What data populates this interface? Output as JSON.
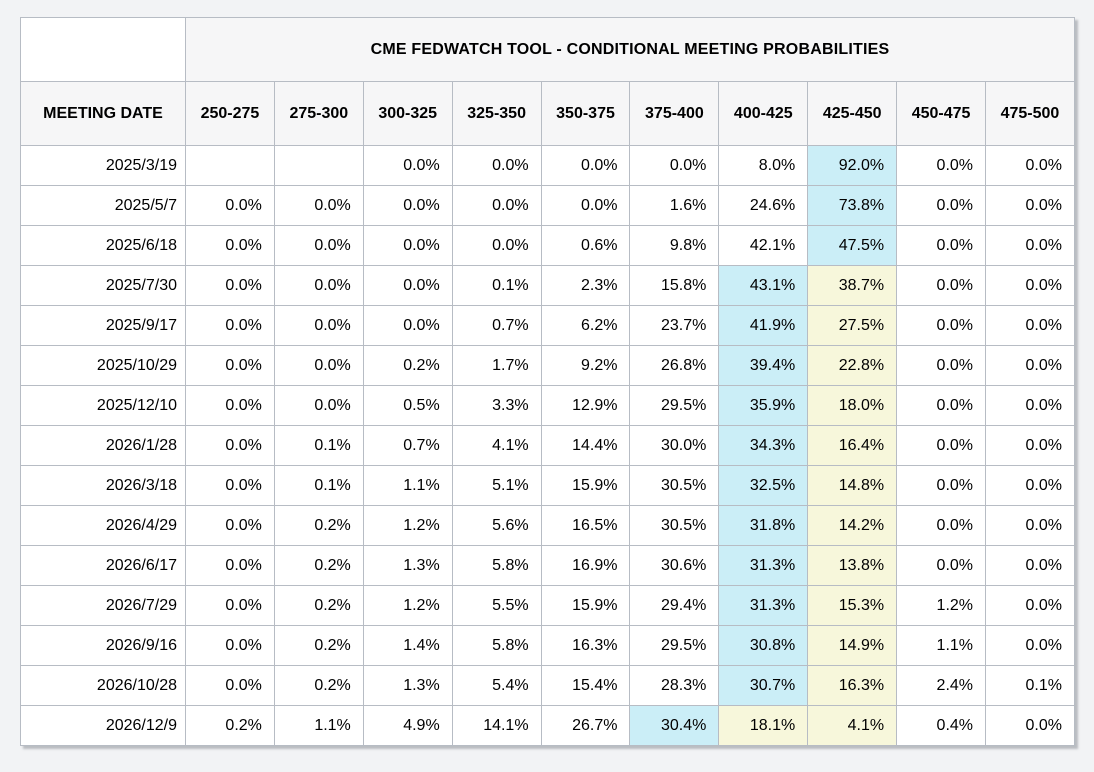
{
  "colors": {
    "page_bg": "#f2f3f5",
    "header_bg": "#f6f6f7",
    "grid_border": "#b7bcc4",
    "highlight_blue": "#cbeef7",
    "highlight_yellow": "#f7f7db"
  },
  "chart_data": {
    "type": "table",
    "title": "CME FEDWATCH TOOL - CONDITIONAL MEETING PROBABILITIES",
    "columns": [
      "MEETING DATE",
      "250-275",
      "275-300",
      "300-325",
      "325-350",
      "350-375",
      "375-400",
      "400-425",
      "425-450",
      "450-475",
      "475-500"
    ],
    "rows": [
      {
        "date": "2025/3/19",
        "values": [
          "",
          "",
          "0.0%",
          "0.0%",
          "0.0%",
          "0.0%",
          "8.0%",
          "92.0%",
          "0.0%",
          "0.0%"
        ],
        "blue_cols": [
          7
        ],
        "yellow_cols": []
      },
      {
        "date": "2025/5/7",
        "values": [
          "0.0%",
          "0.0%",
          "0.0%",
          "0.0%",
          "0.0%",
          "1.6%",
          "24.6%",
          "73.8%",
          "0.0%",
          "0.0%"
        ],
        "blue_cols": [
          7
        ],
        "yellow_cols": []
      },
      {
        "date": "2025/6/18",
        "values": [
          "0.0%",
          "0.0%",
          "0.0%",
          "0.0%",
          "0.6%",
          "9.8%",
          "42.1%",
          "47.5%",
          "0.0%",
          "0.0%"
        ],
        "blue_cols": [
          7
        ],
        "yellow_cols": []
      },
      {
        "date": "2025/7/30",
        "values": [
          "0.0%",
          "0.0%",
          "0.0%",
          "0.1%",
          "2.3%",
          "15.8%",
          "43.1%",
          "38.7%",
          "0.0%",
          "0.0%"
        ],
        "blue_cols": [
          6
        ],
        "yellow_cols": [
          7
        ]
      },
      {
        "date": "2025/9/17",
        "values": [
          "0.0%",
          "0.0%",
          "0.0%",
          "0.7%",
          "6.2%",
          "23.7%",
          "41.9%",
          "27.5%",
          "0.0%",
          "0.0%"
        ],
        "blue_cols": [
          6
        ],
        "yellow_cols": [
          7
        ]
      },
      {
        "date": "2025/10/29",
        "values": [
          "0.0%",
          "0.0%",
          "0.2%",
          "1.7%",
          "9.2%",
          "26.8%",
          "39.4%",
          "22.8%",
          "0.0%",
          "0.0%"
        ],
        "blue_cols": [
          6
        ],
        "yellow_cols": [
          7
        ]
      },
      {
        "date": "2025/12/10",
        "values": [
          "0.0%",
          "0.0%",
          "0.5%",
          "3.3%",
          "12.9%",
          "29.5%",
          "35.9%",
          "18.0%",
          "0.0%",
          "0.0%"
        ],
        "blue_cols": [
          6
        ],
        "yellow_cols": [
          7
        ]
      },
      {
        "date": "2026/1/28",
        "values": [
          "0.0%",
          "0.1%",
          "0.7%",
          "4.1%",
          "14.4%",
          "30.0%",
          "34.3%",
          "16.4%",
          "0.0%",
          "0.0%"
        ],
        "blue_cols": [
          6
        ],
        "yellow_cols": [
          7
        ]
      },
      {
        "date": "2026/3/18",
        "values": [
          "0.0%",
          "0.1%",
          "1.1%",
          "5.1%",
          "15.9%",
          "30.5%",
          "32.5%",
          "14.8%",
          "0.0%",
          "0.0%"
        ],
        "blue_cols": [
          6
        ],
        "yellow_cols": [
          7
        ]
      },
      {
        "date": "2026/4/29",
        "values": [
          "0.0%",
          "0.2%",
          "1.2%",
          "5.6%",
          "16.5%",
          "30.5%",
          "31.8%",
          "14.2%",
          "0.0%",
          "0.0%"
        ],
        "blue_cols": [
          6
        ],
        "yellow_cols": [
          7
        ]
      },
      {
        "date": "2026/6/17",
        "values": [
          "0.0%",
          "0.2%",
          "1.3%",
          "5.8%",
          "16.9%",
          "30.6%",
          "31.3%",
          "13.8%",
          "0.0%",
          "0.0%"
        ],
        "blue_cols": [
          6
        ],
        "yellow_cols": [
          7
        ]
      },
      {
        "date": "2026/7/29",
        "values": [
          "0.0%",
          "0.2%",
          "1.2%",
          "5.5%",
          "15.9%",
          "29.4%",
          "31.3%",
          "15.3%",
          "1.2%",
          "0.0%"
        ],
        "blue_cols": [
          6
        ],
        "yellow_cols": [
          7
        ]
      },
      {
        "date": "2026/9/16",
        "values": [
          "0.0%",
          "0.2%",
          "1.4%",
          "5.8%",
          "16.3%",
          "29.5%",
          "30.8%",
          "14.9%",
          "1.1%",
          "0.0%"
        ],
        "blue_cols": [
          6
        ],
        "yellow_cols": [
          7
        ]
      },
      {
        "date": "2026/10/28",
        "values": [
          "0.0%",
          "0.2%",
          "1.3%",
          "5.4%",
          "15.4%",
          "28.3%",
          "30.7%",
          "16.3%",
          "2.4%",
          "0.1%"
        ],
        "blue_cols": [
          6
        ],
        "yellow_cols": [
          7
        ]
      },
      {
        "date": "2026/12/9",
        "values": [
          "0.2%",
          "1.1%",
          "4.9%",
          "14.1%",
          "26.7%",
          "30.4%",
          "18.1%",
          "4.1%",
          "0.4%",
          "0.0%"
        ],
        "blue_cols": [
          5
        ],
        "yellow_cols": [
          6,
          7
        ]
      }
    ]
  }
}
